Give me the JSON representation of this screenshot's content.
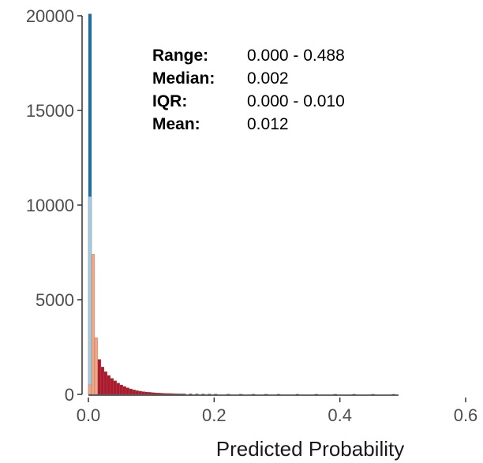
{
  "chart_data": {
    "type": "bar",
    "xlabel": "Predicted Probability",
    "ylabel": "",
    "xlim": [
      0,
      0.6
    ],
    "ylim": [
      0,
      20000
    ],
    "x_ticks": [
      "0.0",
      "0.2",
      "0.4",
      "0.6"
    ],
    "y_ticks": [
      "0",
      "5000",
      "10000",
      "15000",
      "20000"
    ],
    "bin_width": 0.005,
    "bins": [
      {
        "x0": 0.0,
        "count": 20100,
        "color": "#1f6ea3"
      },
      {
        "x0": 0.0,
        "count": 10450,
        "color": "#a6cde3"
      },
      {
        "x0": 0.0,
        "count": 500,
        "color": "#f4a582"
      },
      {
        "x0": 0.005,
        "count": 7400,
        "color": "#f4a582"
      },
      {
        "x0": 0.01,
        "count": 3000,
        "color": "#f4a582"
      },
      {
        "x0": 0.015,
        "count": 1850,
        "color": "#b2182b"
      },
      {
        "x0": 0.02,
        "count": 1450,
        "color": "#b2182b"
      },
      {
        "x0": 0.025,
        "count": 1200,
        "color": "#b2182b"
      },
      {
        "x0": 0.03,
        "count": 1000,
        "color": "#b2182b"
      },
      {
        "x0": 0.035,
        "count": 850,
        "color": "#b2182b"
      },
      {
        "x0": 0.04,
        "count": 720,
        "color": "#b2182b"
      },
      {
        "x0": 0.045,
        "count": 600,
        "color": "#b2182b"
      },
      {
        "x0": 0.05,
        "count": 500,
        "color": "#b2182b"
      },
      {
        "x0": 0.055,
        "count": 420,
        "color": "#b2182b"
      },
      {
        "x0": 0.06,
        "count": 350,
        "color": "#b2182b"
      },
      {
        "x0": 0.065,
        "count": 290,
        "color": "#b2182b"
      },
      {
        "x0": 0.07,
        "count": 240,
        "color": "#b2182b"
      },
      {
        "x0": 0.075,
        "count": 200,
        "color": "#b2182b"
      },
      {
        "x0": 0.08,
        "count": 170,
        "color": "#b2182b"
      },
      {
        "x0": 0.085,
        "count": 145,
        "color": "#b2182b"
      },
      {
        "x0": 0.09,
        "count": 125,
        "color": "#b2182b"
      },
      {
        "x0": 0.095,
        "count": 110,
        "color": "#b2182b"
      },
      {
        "x0": 0.1,
        "count": 95,
        "color": "#b2182b"
      },
      {
        "x0": 0.105,
        "count": 82,
        "color": "#b2182b"
      },
      {
        "x0": 0.11,
        "count": 72,
        "color": "#b2182b"
      },
      {
        "x0": 0.115,
        "count": 63,
        "color": "#b2182b"
      },
      {
        "x0": 0.12,
        "count": 56,
        "color": "#b2182b"
      },
      {
        "x0": 0.125,
        "count": 50,
        "color": "#b2182b"
      },
      {
        "x0": 0.13,
        "count": 45,
        "color": "#b2182b"
      },
      {
        "x0": 0.135,
        "count": 40,
        "color": "#b2182b"
      },
      {
        "x0": 0.14,
        "count": 36,
        "color": "#b2182b"
      },
      {
        "x0": 0.145,
        "count": 33,
        "color": "#b2182b"
      },
      {
        "x0": 0.15,
        "count": 30,
        "color": "#b2182b"
      },
      {
        "x0": 0.16,
        "count": 27,
        "color": "#b2182b"
      },
      {
        "x0": 0.17,
        "count": 24,
        "color": "#b2182b"
      },
      {
        "x0": 0.18,
        "count": 22,
        "color": "#b2182b"
      },
      {
        "x0": 0.19,
        "count": 20,
        "color": "#b2182b"
      },
      {
        "x0": 0.2,
        "count": 18,
        "color": "#b2182b"
      },
      {
        "x0": 0.22,
        "count": 16,
        "color": "#b2182b"
      },
      {
        "x0": 0.24,
        "count": 14,
        "color": "#b2182b"
      },
      {
        "x0": 0.26,
        "count": 12,
        "color": "#b2182b"
      },
      {
        "x0": 0.28,
        "count": 11,
        "color": "#b2182b"
      },
      {
        "x0": 0.3,
        "count": 10,
        "color": "#b2182b"
      },
      {
        "x0": 0.33,
        "count": 9,
        "color": "#b2182b"
      },
      {
        "x0": 0.36,
        "count": 8,
        "color": "#b2182b"
      },
      {
        "x0": 0.39,
        "count": 7,
        "color": "#b2182b"
      },
      {
        "x0": 0.42,
        "count": 6,
        "color": "#b2182b"
      },
      {
        "x0": 0.45,
        "count": 5,
        "color": "#b2182b"
      },
      {
        "x0": 0.483,
        "count": 4,
        "color": "#b2182b"
      }
    ],
    "stats": [
      {
        "label": "Range:",
        "value": "0.000 - 0.488"
      },
      {
        "label": "Median:",
        "value": "0.002"
      },
      {
        "label": "IQR:",
        "value": "0.000 - 0.010"
      },
      {
        "label": "Mean:",
        "value": "0.012"
      }
    ],
    "grid": false
  }
}
